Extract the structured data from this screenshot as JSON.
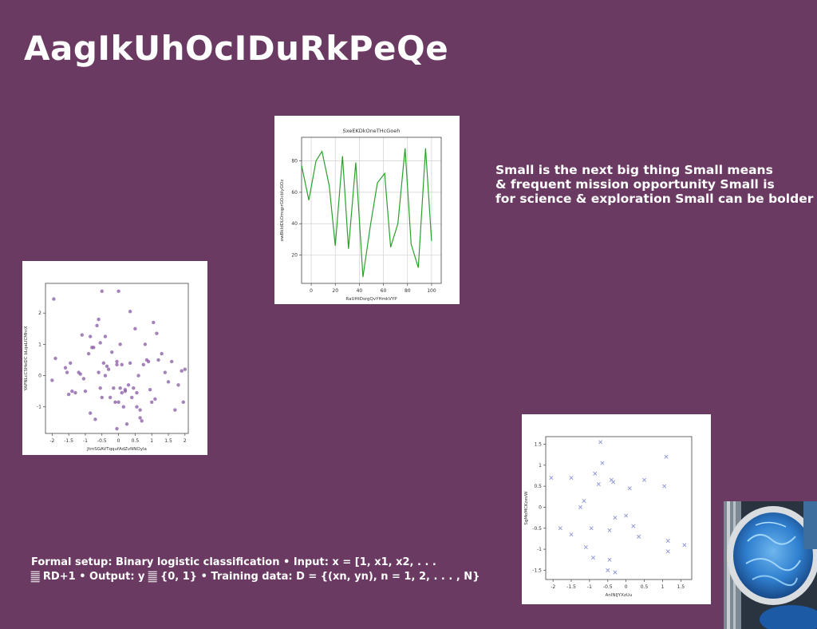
{
  "title": "AagIkUhOcIDuRkPeQe",
  "body_text": {
    "lines": [
      "Small is the next big thing Small means",
      "& frequent mission opportunity Small is",
      "for science & exploration Small can be bolder"
    ]
  },
  "formal_text": {
    "lines": [
      "Formal setup: Binary logistic classification • Input: x = [1, x1, x2, . . .",
      "𝄛 RD+1 • Output: y 𝄛 {0, 1} • Training data: D = {(xn, yn), n = 1, 2, . . . , N}"
    ]
  },
  "photo": {
    "icon": "blue-dish-photo"
  },
  "chart_data": [
    {
      "type": "line",
      "title": "SxeEKDkOneTHcGoeh",
      "xlabel": "RaUHtDsrgQvYHmkVYP",
      "ylabel": "owBkIdDLOmqprGOcbIyGOz",
      "color": "#2ca02c",
      "xlim": [
        -8,
        108
      ],
      "ylim": [
        2,
        95
      ],
      "xticks": [
        0,
        20,
        40,
        60,
        80,
        100
      ],
      "yticks": [
        20,
        40,
        60,
        80
      ],
      "x": [
        -8,
        -2,
        4,
        9,
        15,
        20,
        26,
        31,
        37,
        43,
        49,
        55,
        61,
        66,
        72,
        78,
        83,
        89,
        95,
        100
      ],
      "y": [
        77,
        55,
        80,
        86,
        64,
        26,
        83,
        24,
        79,
        6,
        38,
        66,
        72,
        25,
        40,
        88,
        27,
        12,
        88,
        29
      ]
    },
    {
      "type": "scatter",
      "title": "",
      "xlabel": "JtmSGAVTqqufAdZvNNOyla",
      "ylabel": "YAPNLcCSHeDC bLqaLICMhrX",
      "color": "#8e63a8",
      "marker": "dot",
      "xlim": [
        -2.2,
        2.1
      ],
      "ylim": [
        -1.85,
        2.95
      ],
      "xticks": [
        -2.0,
        -1.5,
        -1.0,
        -0.5,
        0.0,
        0.5,
        1.0,
        1.5,
        2.0
      ],
      "yticks": [
        -1,
        0,
        1,
        2
      ],
      "x": [
        -2.0,
        -1.95,
        -1.9,
        -1.6,
        -1.55,
        -1.5,
        -1.45,
        -1.4,
        -1.3,
        -1.2,
        -1.15,
        -1.1,
        -1.05,
        -1.0,
        -0.9,
        -0.85,
        -0.8,
        -0.75,
        -0.7,
        -0.65,
        -0.6,
        -0.6,
        -0.55,
        -0.5,
        -0.5,
        -0.45,
        -0.4,
        -0.35,
        -0.3,
        -0.25,
        -0.2,
        -0.15,
        -0.1,
        -0.05,
        -0.05,
        0.0,
        0.0,
        0.05,
        0.05,
        0.1,
        0.1,
        0.15,
        0.2,
        0.25,
        0.3,
        0.35,
        0.4,
        0.45,
        0.5,
        0.55,
        0.6,
        0.65,
        0.7,
        0.75,
        0.8,
        0.85,
        0.9,
        0.95,
        1.0,
        1.05,
        1.1,
        1.15,
        1.2,
        1.3,
        1.4,
        1.5,
        1.6,
        1.7,
        1.8,
        1.9,
        1.95,
        2.0,
        -0.55,
        -0.05,
        0.35,
        0.2,
        -0.4,
        0.55,
        0.65,
        -0.85
      ],
      "y": [
        -0.15,
        2.45,
        0.55,
        0.25,
        0.1,
        -0.6,
        0.4,
        -0.5,
        -0.55,
        0.1,
        0.05,
        1.3,
        -0.1,
        -0.5,
        0.7,
        -1.2,
        0.9,
        0.9,
        -1.4,
        1.6,
        0.1,
        1.8,
        1.05,
        2.7,
        -0.7,
        0.4,
        0.0,
        0.3,
        0.2,
        -0.7,
        0.75,
        -0.4,
        -0.85,
        0.45,
        -1.7,
        -0.85,
        2.7,
        -0.4,
        1.0,
        -0.55,
        0.35,
        -1.0,
        -0.5,
        -1.55,
        -0.3,
        0.4,
        -0.7,
        -0.4,
        1.5,
        -1.0,
        0.0,
        -1.1,
        -1.45,
        0.35,
        1.0,
        0.5,
        0.45,
        -0.45,
        -0.85,
        1.7,
        -0.75,
        1.35,
        0.5,
        0.7,
        0.1,
        -0.2,
        0.45,
        -1.1,
        -0.3,
        0.15,
        -0.85,
        0.2,
        -0.4,
        0.35,
        2.05,
        -0.45,
        1.25,
        -0.55,
        -1.35,
        1.25
      ]
    },
    {
      "type": "scatter",
      "title": "",
      "xlabel": "AnlNIJYXzUu",
      "ylabel": "SgMoMCKzevW",
      "color": "#8a93d8",
      "marker": "x",
      "xlim": [
        -2.2,
        1.8
      ],
      "ylim": [
        -1.72,
        1.68
      ],
      "xticks": [
        -2.0,
        -1.5,
        -1.0,
        -0.5,
        0.0,
        0.5,
        1.0,
        1.5
      ],
      "yticks": [
        -1.5,
        -1.0,
        -0.5,
        0.0,
        0.5,
        1.0,
        1.5
      ],
      "x": [
        -2.05,
        -1.8,
        -1.5,
        -1.5,
        -1.25,
        -1.15,
        -1.1,
        -0.95,
        -0.9,
        -0.85,
        -0.75,
        -0.7,
        -0.65,
        -0.5,
        -0.45,
        -0.45,
        -0.4,
        -0.35,
        -0.3,
        -0.3,
        0.0,
        0.1,
        0.2,
        0.35,
        0.5,
        1.05,
        1.1,
        1.15,
        1.15,
        1.6
      ],
      "y": [
        0.7,
        -0.5,
        0.7,
        -0.65,
        0.0,
        0.15,
        -0.95,
        -0.5,
        -1.2,
        0.8,
        0.55,
        1.55,
        1.05,
        -1.5,
        -1.25,
        -0.55,
        0.65,
        0.6,
        -0.25,
        -1.55,
        -0.2,
        0.45,
        -0.45,
        -0.7,
        0.65,
        0.5,
        1.2,
        -0.8,
        -1.05,
        -0.9
      ]
    }
  ]
}
